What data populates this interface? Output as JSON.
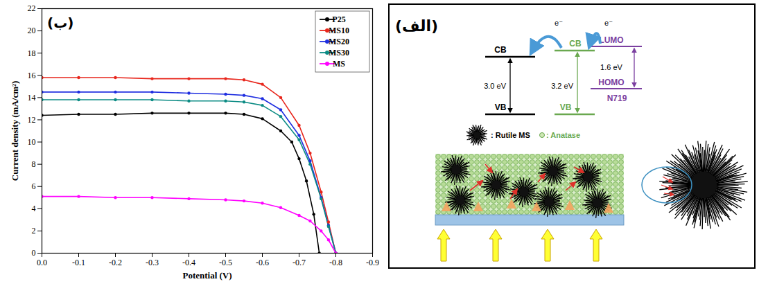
{
  "chart_data": {
    "type": "line",
    "panel_label": "(ب)",
    "x_label": "Potential (V)",
    "y_label": "Current density (mA/cm²)",
    "xlim": [
      0,
      -0.9
    ],
    "xticks": [
      {
        "value": 0,
        "label": "0.0"
      },
      -0.1,
      -0.2,
      -0.3,
      -0.4,
      -0.5,
      -0.6,
      -0.7,
      -0.8,
      -0.9
    ],
    "ylim": [
      0,
      22
    ],
    "yticks": [
      0,
      2,
      4,
      6,
      8,
      10,
      12,
      14,
      16,
      18,
      20,
      22
    ],
    "grid": false,
    "legend": "upper right",
    "marker": "circle",
    "series": [
      {
        "name": "P25",
        "color": "#000000",
        "x": [
          0,
          -0.1,
          -0.2,
          -0.3,
          -0.4,
          -0.5,
          -0.55,
          -0.6,
          -0.65,
          -0.68,
          -0.7,
          -0.72,
          -0.74,
          -0.755
        ],
        "values": [
          12.4,
          12.5,
          12.5,
          12.6,
          12.6,
          12.6,
          12.5,
          12.1,
          11.0,
          10.0,
          8.5,
          6.5,
          3.5,
          0
        ]
      },
      {
        "name": "MS10",
        "color": "#e8261c",
        "x": [
          0,
          -0.1,
          -0.2,
          -0.3,
          -0.4,
          -0.5,
          -0.55,
          -0.6,
          -0.65,
          -0.7,
          -0.73,
          -0.76,
          -0.78,
          -0.8
        ],
        "values": [
          15.8,
          15.8,
          15.8,
          15.7,
          15.7,
          15.7,
          15.6,
          15.2,
          14.0,
          11.5,
          9.0,
          5.5,
          2.8,
          0
        ]
      },
      {
        "name": "MS20",
        "color": "#1f2ee0",
        "x": [
          0,
          -0.1,
          -0.2,
          -0.3,
          -0.4,
          -0.5,
          -0.55,
          -0.6,
          -0.65,
          -0.7,
          -0.73,
          -0.76,
          -0.78,
          -0.8
        ],
        "values": [
          14.5,
          14.5,
          14.5,
          14.5,
          14.4,
          14.3,
          14.2,
          13.9,
          12.9,
          10.6,
          8.3,
          5.0,
          2.5,
          0
        ]
      },
      {
        "name": "MS30",
        "color": "#0b8b84",
        "x": [
          0,
          -0.1,
          -0.2,
          -0.3,
          -0.4,
          -0.5,
          -0.55,
          -0.6,
          -0.65,
          -0.7,
          -0.73,
          -0.76,
          -0.78,
          -0.8
        ],
        "values": [
          13.8,
          13.8,
          13.8,
          13.8,
          13.7,
          13.7,
          13.6,
          13.3,
          12.3,
          10.2,
          8.0,
          4.9,
          2.4,
          0
        ]
      },
      {
        "name": "MS",
        "color": "#ff00ff",
        "x": [
          0,
          -0.1,
          -0.2,
          -0.3,
          -0.4,
          -0.5,
          -0.55,
          -0.6,
          -0.65,
          -0.7,
          -0.73,
          -0.76,
          -0.78,
          -0.8
        ],
        "values": [
          5.1,
          5.1,
          5.0,
          5.0,
          4.9,
          4.8,
          4.7,
          4.5,
          4.1,
          3.4,
          2.9,
          2.0,
          1.2,
          0
        ]
      }
    ]
  },
  "diagram": {
    "panel_label": "(الف)",
    "electron": "e⁻",
    "rutile": {
      "cb": "CB",
      "vb": "VB",
      "gap": "3.0 eV"
    },
    "anatase": {
      "cb": "CB",
      "vb": "VB",
      "gap": "3.2 eV"
    },
    "dye": {
      "lumo": "LUMO",
      "homo": "HOMO",
      "gap": "1.6 eV",
      "name": "N719"
    },
    "legend": {
      "rutile": ": Rutile MS",
      "anatase": ": Anatase"
    }
  }
}
